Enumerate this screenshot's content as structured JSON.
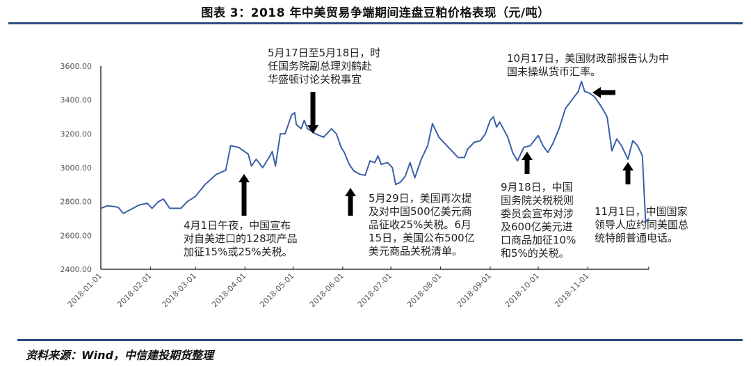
{
  "title": "图表 3：2018 年中美贸易争端期间连盘豆粕价格表现（元/吨）",
  "source": "资料来源：Wind，中信建投期货整理",
  "colors": {
    "line": "#3a5fa8",
    "rule": "#2b4c7e",
    "arrow": "#000000",
    "axis": "#333333"
  },
  "chart_data": {
    "type": "line",
    "title": "图表 3：2018 年中美贸易争端期间连盘豆粕价格表现（元/吨）",
    "xlabel": "",
    "ylabel": "元/吨",
    "ylim": [
      2400,
      3600
    ],
    "yticks": [
      "3600.00",
      "3400.00",
      "3200.00",
      "3000.00",
      "2800.00",
      "2600.00",
      "2400.00"
    ],
    "xticks": [
      "2018-01-01",
      "2018-02-01",
      "2018-03-01",
      "2018-04-01",
      "2018-05-01",
      "2018-06-01",
      "2018-07-01",
      "2018-08-01",
      "2018-09-01",
      "2018-10-01",
      "2018-11-01"
    ],
    "grid": false,
    "legend": "none",
    "series": [
      {
        "name": "连盘豆粕",
        "points": [
          [
            "2018-01-01",
            2760
          ],
          [
            "2018-01-05",
            2775
          ],
          [
            "2018-01-10",
            2770
          ],
          [
            "2018-01-12",
            2765
          ],
          [
            "2018-01-15",
            2730
          ],
          [
            "2018-01-20",
            2755
          ],
          [
            "2018-01-25",
            2780
          ],
          [
            "2018-01-30",
            2790
          ],
          [
            "2018-02-02",
            2760
          ],
          [
            "2018-02-06",
            2800
          ],
          [
            "2018-02-09",
            2815
          ],
          [
            "2018-02-13",
            2760
          ],
          [
            "2018-02-20",
            2760
          ],
          [
            "2018-02-24",
            2800
          ],
          [
            "2018-03-01",
            2830
          ],
          [
            "2018-03-07",
            2900
          ],
          [
            "2018-03-14",
            2960
          ],
          [
            "2018-03-20",
            2985
          ],
          [
            "2018-03-23",
            3130
          ],
          [
            "2018-03-28",
            3120
          ],
          [
            "2018-04-03",
            3080
          ],
          [
            "2018-04-05",
            3010
          ],
          [
            "2018-04-08",
            3050
          ],
          [
            "2018-04-12",
            3000
          ],
          [
            "2018-04-16",
            3060
          ],
          [
            "2018-04-18",
            3095
          ],
          [
            "2018-04-20",
            3010
          ],
          [
            "2018-04-23",
            3200
          ],
          [
            "2018-04-26",
            3200
          ],
          [
            "2018-04-30",
            3310
          ],
          [
            "2018-05-02",
            3325
          ],
          [
            "2018-05-03",
            3255
          ],
          [
            "2018-05-06",
            3230
          ],
          [
            "2018-05-08",
            3280
          ],
          [
            "2018-05-10",
            3230
          ],
          [
            "2018-05-15",
            3200
          ],
          [
            "2018-05-20",
            3180
          ],
          [
            "2018-05-25",
            3230
          ],
          [
            "2018-05-28",
            3200
          ],
          [
            "2018-05-31",
            3120
          ],
          [
            "2018-06-02",
            3090
          ],
          [
            "2018-06-05",
            3020
          ],
          [
            "2018-06-08",
            2980
          ],
          [
            "2018-06-12",
            2960
          ],
          [
            "2018-06-15",
            2955
          ],
          [
            "2018-06-18",
            3040
          ],
          [
            "2018-06-21",
            3030
          ],
          [
            "2018-06-23",
            3070
          ],
          [
            "2018-06-25",
            3020
          ],
          [
            "2018-06-29",
            3030
          ],
          [
            "2018-07-02",
            3000
          ],
          [
            "2018-07-04",
            2900
          ],
          [
            "2018-07-07",
            2915
          ],
          [
            "2018-07-10",
            2950
          ],
          [
            "2018-07-13",
            3030
          ],
          [
            "2018-07-16",
            2940
          ],
          [
            "2018-07-20",
            3050
          ],
          [
            "2018-07-24",
            3130
          ],
          [
            "2018-07-27",
            3260
          ],
          [
            "2018-07-31",
            3180
          ],
          [
            "2018-08-04",
            3140
          ],
          [
            "2018-08-08",
            3100
          ],
          [
            "2018-08-12",
            3060
          ],
          [
            "2018-08-16",
            3060
          ],
          [
            "2018-08-18",
            3110
          ],
          [
            "2018-08-22",
            3150
          ],
          [
            "2018-08-26",
            3160
          ],
          [
            "2018-08-29",
            3200
          ],
          [
            "2018-09-01",
            3280
          ],
          [
            "2018-09-03",
            3300
          ],
          [
            "2018-09-05",
            3240
          ],
          [
            "2018-09-07",
            3270
          ],
          [
            "2018-09-12",
            3180
          ],
          [
            "2018-09-15",
            3090
          ],
          [
            "2018-09-18",
            3040
          ],
          [
            "2018-09-22",
            3120
          ],
          [
            "2018-09-26",
            3130
          ],
          [
            "2018-10-01",
            3190
          ],
          [
            "2018-10-04",
            3130
          ],
          [
            "2018-10-07",
            3090
          ],
          [
            "2018-10-10",
            3140
          ],
          [
            "2018-10-14",
            3230
          ],
          [
            "2018-10-18",
            3350
          ],
          [
            "2018-10-22",
            3400
          ],
          [
            "2018-10-26",
            3450
          ],
          [
            "2018-10-28",
            3510
          ],
          [
            "2018-10-30",
            3450
          ],
          [
            "2018-11-02",
            3440
          ],
          [
            "2018-11-05",
            3420
          ],
          [
            "2018-11-08",
            3380
          ],
          [
            "2018-11-10",
            3350
          ],
          [
            "2018-11-13",
            3300
          ],
          [
            "2018-11-16",
            3100
          ],
          [
            "2018-11-19",
            3170
          ],
          [
            "2018-11-22",
            3130
          ],
          [
            "2018-11-26",
            3050
          ],
          [
            "2018-11-29",
            3160
          ],
          [
            "2018-12-02",
            3130
          ],
          [
            "2018-12-05",
            3070
          ],
          [
            "2018-12-07",
            2680
          ],
          [
            "2018-12-09",
            2700
          ]
        ]
      }
    ],
    "annotations": [
      {
        "text": "4月1日午夜，中国宣布\n对自美进口的128项产品\n加征15%或25%关税。",
        "arrow": "up",
        "date": "2018-04-04"
      },
      {
        "text": "5月17日至5月18日，时\n任国务院副总理刘鹤赴\n华盛顿讨论关税事宜",
        "arrow": "down",
        "date": "2018-05-17"
      },
      {
        "text": "5月29日，美国再次提\n及对中国500亿美元商\n品征收25%关税。6月\n15日，美国公布500亿\n美元商品关税清单。",
        "arrow": "up",
        "date": "2018-06-01"
      },
      {
        "text": "9月18日，中国\n国务院关税税则\n委员会宣布对涉\n及600亿美元进\n口商品加征10%\n和5%的关税。",
        "arrow": "up",
        "date": "2018-09-18"
      },
      {
        "text": "10月17日，美国财政部报告认为中\n国未操纵货币汇率。",
        "arrow": "left",
        "date": "2018-10-17"
      },
      {
        "text": "11月1日，中国国家\n领导人应约同美国总\n统特朗普通电话。",
        "arrow": "up",
        "date": "2018-11-01"
      }
    ]
  }
}
